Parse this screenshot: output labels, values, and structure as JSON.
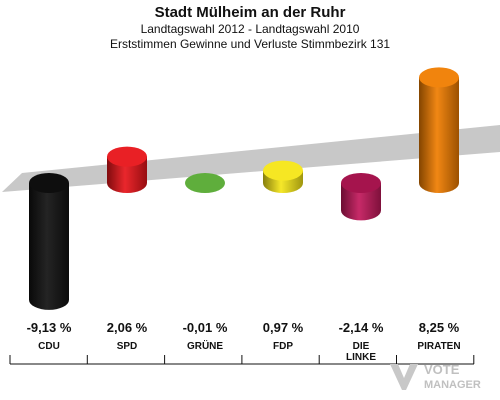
{
  "title": "Stadt Mülheim an der Ruhr",
  "subtitle1": "Landtagswahl 2012 - Landtagswahl 2010",
  "subtitle2": "Erststimmen Gewinne und Verluste Stimmbezirk 131",
  "watermark": {
    "line1": "VOTE",
    "line2": "MANAGER"
  },
  "chart_data": {
    "type": "bar",
    "categories": [
      "CDU",
      "SPD",
      "GRÜNE",
      "FDP",
      "DIE LINKE",
      "PIRATEN"
    ],
    "category_lines": [
      [
        "CDU"
      ],
      [
        "SPD"
      ],
      [
        "GRÜNE"
      ],
      [
        "FDP"
      ],
      [
        "DIE",
        "LINKE"
      ],
      [
        "PIRATEN"
      ]
    ],
    "values": [
      -9.13,
      2.06,
      -0.01,
      0.97,
      -2.14,
      8.25
    ],
    "value_labels": [
      "-9,13 %",
      "2,06 %",
      "-0,01 %",
      "0,97 %",
      "-2,14 %",
      "8,25 %"
    ],
    "colors": [
      "#111111",
      "#e8141a",
      "#5fae3c",
      "#f5e617",
      "#c2185b",
      "#f07d00"
    ],
    "xlabel": "",
    "ylabel": ""
  }
}
